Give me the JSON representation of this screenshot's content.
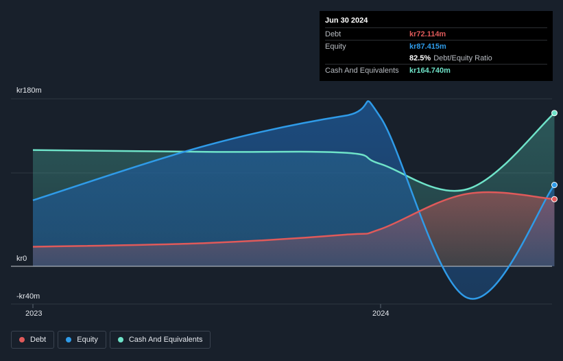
{
  "tooltip": {
    "date": "Jun 30 2024",
    "debt_label": "Debt",
    "debt_value": "kr72.114m",
    "equity_label": "Equity",
    "equity_value": "kr87.415m",
    "ratio_value": "82.5%",
    "ratio_label": "Debt/Equity Ratio",
    "cash_label": "Cash And Equivalents",
    "cash_value": "kr164.740m"
  },
  "legend": [
    {
      "label": "Debt",
      "color": "#e05a5a"
    },
    {
      "label": "Equity",
      "color": "#2f9be8"
    },
    {
      "label": "Cash And Equivalents",
      "color": "#6fe3c9"
    }
  ],
  "chart_data": {
    "type": "area",
    "y_tick_labels": [
      "kr180m",
      "kr0",
      "-kr40m"
    ],
    "x_tick_labels": [
      "2023",
      "2024"
    ],
    "ylim": [
      -40,
      180
    ],
    "x": [
      2023.0,
      2023.5,
      2023.9,
      2024.0,
      2024.25,
      2024.5
    ],
    "series": [
      {
        "name": "Debt",
        "color": "#e05a5a",
        "values": [
          21,
          25,
          34,
          40,
          78,
          72.114
        ]
      },
      {
        "name": "Equity",
        "color": "#2f9be8",
        "values": [
          71,
          130,
          162,
          160,
          -34,
          87.415
        ]
      },
      {
        "name": "Cash And Equivalents",
        "color": "#6fe3c9",
        "values": [
          125,
          123,
          122,
          110,
          83,
          164.74
        ]
      }
    ]
  }
}
